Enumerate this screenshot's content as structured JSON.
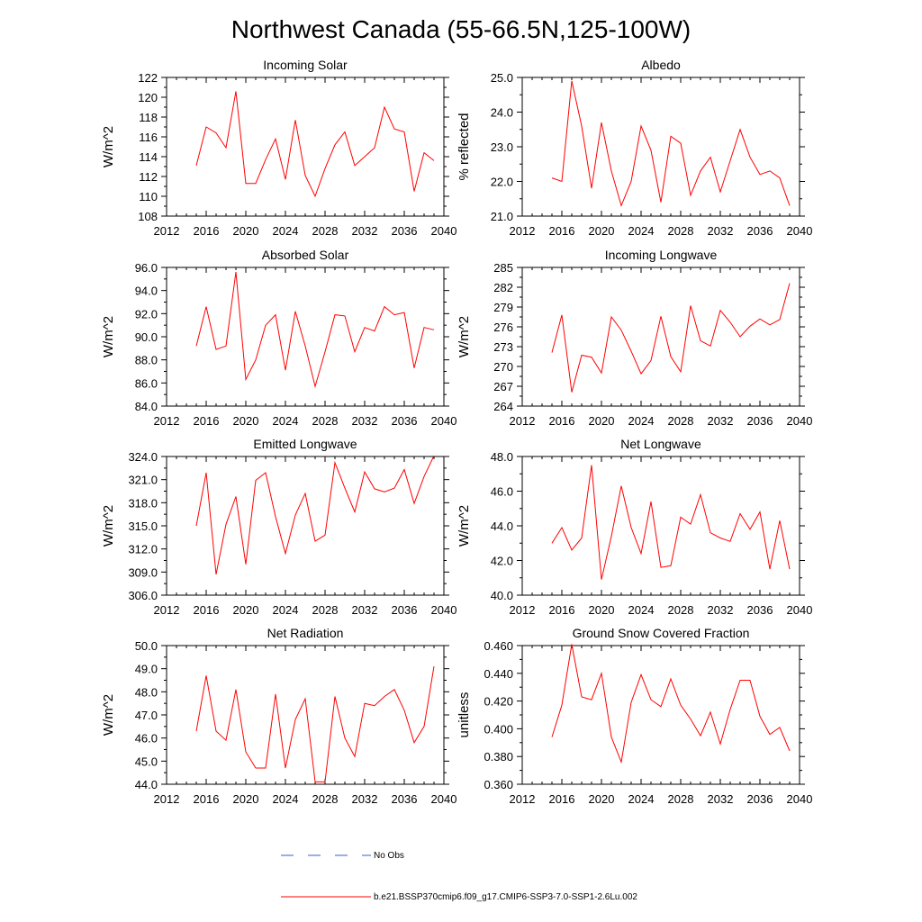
{
  "title": "Northwest Canada (55-66.5N,125-100W)",
  "legend": {
    "obs_label": "No Obs",
    "obs_color": "#3a5bd0",
    "model_label": "b.e21.BSSP370cmip6.f09_g17.CMIP6-SSP3-7.0-SSP1-2.6Lu.002",
    "model_color": "#ff0000"
  },
  "chart_data": [
    {
      "type": "line",
      "title": "Incoming Solar",
      "ylabel": "W/m^2",
      "xlim": [
        2012,
        2040
      ],
      "xticks": [
        "2012",
        "2016",
        "2020",
        "2024",
        "2028",
        "2032",
        "2036",
        "2040"
      ],
      "ylim": [
        108,
        122
      ],
      "yticks": [
        "108",
        "110",
        "112",
        "114",
        "116",
        "118",
        "120",
        "122"
      ],
      "x": [
        2015,
        2016,
        2017,
        2018,
        2019,
        2020,
        2021,
        2022,
        2023,
        2024,
        2025,
        2026,
        2027,
        2028,
        2029,
        2030,
        2031,
        2032,
        2033,
        2034,
        2035,
        2036,
        2037,
        2038,
        2039
      ],
      "series": [
        {
          "values": [
            113.1,
            117.0,
            116.4,
            114.9,
            120.6,
            111.3,
            111.3,
            113.7,
            115.8,
            111.7,
            117.7,
            112.1,
            110.0,
            112.8,
            115.2,
            116.5,
            113.1,
            114.0,
            114.9,
            119.0,
            116.8,
            116.5,
            110.5,
            114.4,
            113.6
          ]
        }
      ]
    },
    {
      "type": "line",
      "title": "Albedo",
      "ylabel": "% reflected",
      "xlim": [
        2012,
        2040
      ],
      "xticks": [
        "2012",
        "2016",
        "2020",
        "2024",
        "2028",
        "2032",
        "2036",
        "2040"
      ],
      "ylim": [
        21.0,
        25.0
      ],
      "yticks": [
        "21.0",
        "22.0",
        "23.0",
        "24.0",
        "25.0"
      ],
      "x": [
        2015,
        2016,
        2017,
        2018,
        2019,
        2020,
        2021,
        2022,
        2023,
        2024,
        2025,
        2026,
        2027,
        2028,
        2029,
        2030,
        2031,
        2032,
        2033,
        2034,
        2035,
        2036,
        2037,
        2038,
        2039
      ],
      "series": [
        {
          "values": [
            22.1,
            22.0,
            24.9,
            23.6,
            21.8,
            23.7,
            22.3,
            21.3,
            22.0,
            23.6,
            22.9,
            21.4,
            23.3,
            23.1,
            21.6,
            22.3,
            22.7,
            21.7,
            22.6,
            23.5,
            22.7,
            22.2,
            22.3,
            22.1,
            21.3
          ]
        }
      ]
    },
    {
      "type": "line",
      "title": "Absorbed Solar",
      "ylabel": "W/m^2",
      "xlim": [
        2012,
        2040
      ],
      "xticks": [
        "2012",
        "2016",
        "2020",
        "2024",
        "2028",
        "2032",
        "2036",
        "2040"
      ],
      "ylim": [
        84.0,
        96.0
      ],
      "yticks": [
        "84.0",
        "86.0",
        "88.0",
        "90.0",
        "92.0",
        "94.0",
        "96.0"
      ],
      "x": [
        2015,
        2016,
        2017,
        2018,
        2019,
        2020,
        2021,
        2022,
        2023,
        2024,
        2025,
        2026,
        2027,
        2028,
        2029,
        2030,
        2031,
        2032,
        2033,
        2034,
        2035,
        2036,
        2037,
        2038,
        2039
      ],
      "series": [
        {
          "values": [
            89.2,
            92.6,
            88.9,
            89.2,
            95.6,
            86.3,
            88.0,
            91.0,
            91.9,
            87.1,
            92.2,
            89.2,
            85.7,
            88.7,
            91.9,
            91.8,
            88.7,
            90.8,
            90.5,
            92.6,
            91.9,
            92.1,
            87.3,
            90.8,
            90.6
          ]
        }
      ]
    },
    {
      "type": "line",
      "title": "Incoming Longwave",
      "ylabel": "W/m^2",
      "xlim": [
        2012,
        2040
      ],
      "xticks": [
        "2012",
        "2016",
        "2020",
        "2024",
        "2028",
        "2032",
        "2036",
        "2040"
      ],
      "ylim": [
        264,
        285
      ],
      "yticks": [
        "264",
        "267",
        "270",
        "273",
        "276",
        "279",
        "282",
        "285"
      ],
      "x": [
        2015,
        2016,
        2017,
        2018,
        2019,
        2020,
        2021,
        2022,
        2023,
        2024,
        2025,
        2026,
        2027,
        2028,
        2029,
        2030,
        2031,
        2032,
        2033,
        2034,
        2035,
        2036,
        2037,
        2038,
        2039
      ],
      "series": [
        {
          "values": [
            272.1,
            277.8,
            266.1,
            271.7,
            271.4,
            269.0,
            277.5,
            275.5,
            272.3,
            268.9,
            270.9,
            277.6,
            271.5,
            269.2,
            279.2,
            273.9,
            273.1,
            278.5,
            276.7,
            274.5,
            276.1,
            277.2,
            276.3,
            277.1,
            282.6
          ]
        }
      ]
    },
    {
      "type": "line",
      "title": "Emitted Longwave",
      "ylabel": "W/m^2",
      "xlim": [
        2012,
        2040
      ],
      "xticks": [
        "2012",
        "2016",
        "2020",
        "2024",
        "2028",
        "2032",
        "2036",
        "2040"
      ],
      "ylim": [
        306.0,
        324.0
      ],
      "yticks": [
        "306.0",
        "309.0",
        "312.0",
        "315.0",
        "318.0",
        "321.0",
        "324.0"
      ],
      "x": [
        2015,
        2016,
        2017,
        2018,
        2019,
        2020,
        2021,
        2022,
        2023,
        2024,
        2025,
        2026,
        2027,
        2028,
        2029,
        2030,
        2031,
        2032,
        2033,
        2034,
        2035,
        2036,
        2037,
        2038,
        2039
      ],
      "series": [
        {
          "values": [
            315.0,
            321.9,
            308.7,
            315.2,
            318.8,
            310.0,
            320.9,
            321.9,
            316.2,
            311.4,
            316.4,
            319.2,
            313.0,
            313.8,
            323.2,
            319.9,
            316.8,
            322.0,
            319.8,
            319.4,
            319.9,
            322.3,
            317.9,
            321.4,
            324.1
          ]
        }
      ]
    },
    {
      "type": "line",
      "title": "Net Longwave",
      "ylabel": "W/m^2",
      "xlim": [
        2012,
        2040
      ],
      "xticks": [
        "2012",
        "2016",
        "2020",
        "2024",
        "2028",
        "2032",
        "2036",
        "2040"
      ],
      "ylim": [
        40.0,
        48.0
      ],
      "yticks": [
        "40.0",
        "42.0",
        "44.0",
        "46.0",
        "48.0"
      ],
      "x": [
        2015,
        2016,
        2017,
        2018,
        2019,
        2020,
        2021,
        2022,
        2023,
        2024,
        2025,
        2026,
        2027,
        2028,
        2029,
        2030,
        2031,
        2032,
        2033,
        2034,
        2035,
        2036,
        2037,
        2038,
        2039
      ],
      "series": [
        {
          "values": [
            43.0,
            43.9,
            42.6,
            43.3,
            47.5,
            40.9,
            43.4,
            46.3,
            43.9,
            42.4,
            45.4,
            41.6,
            41.7,
            44.5,
            44.1,
            45.8,
            43.6,
            43.3,
            43.1,
            44.7,
            43.8,
            44.8,
            41.5,
            44.3,
            41.5
          ]
        }
      ]
    },
    {
      "type": "line",
      "title": "Net Radiation",
      "ylabel": "W/m^2",
      "xlim": [
        2012,
        2040
      ],
      "xticks": [
        "2012",
        "2016",
        "2020",
        "2024",
        "2028",
        "2032",
        "2036",
        "2040"
      ],
      "ylim": [
        44.0,
        50.0
      ],
      "yticks": [
        "44.0",
        "45.0",
        "46.0",
        "47.0",
        "48.0",
        "49.0",
        "50.0"
      ],
      "x": [
        2015,
        2016,
        2017,
        2018,
        2019,
        2020,
        2021,
        2022,
        2023,
        2024,
        2025,
        2026,
        2027,
        2028,
        2029,
        2030,
        2031,
        2032,
        2033,
        2034,
        2035,
        2036,
        2037,
        2038,
        2039
      ],
      "series": [
        {
          "values": [
            46.3,
            48.7,
            46.3,
            45.9,
            48.1,
            45.4,
            44.7,
            44.7,
            47.9,
            44.7,
            46.8,
            47.7,
            44.1,
            44.1,
            47.8,
            46.0,
            45.2,
            47.5,
            47.4,
            47.8,
            48.1,
            47.2,
            45.8,
            46.5,
            49.1
          ]
        }
      ]
    },
    {
      "type": "line",
      "title": "Ground Snow Covered Fraction",
      "ylabel": "unitless",
      "xlim": [
        2012,
        2040
      ],
      "xticks": [
        "2012",
        "2016",
        "2020",
        "2024",
        "2028",
        "2032",
        "2036",
        "2040"
      ],
      "ylim": [
        0.36,
        0.46
      ],
      "yticks": [
        "0.360",
        "0.380",
        "0.400",
        "0.420",
        "0.440",
        "0.460"
      ],
      "x": [
        2015,
        2016,
        2017,
        2018,
        2019,
        2020,
        2021,
        2022,
        2023,
        2024,
        2025,
        2026,
        2027,
        2028,
        2029,
        2030,
        2031,
        2032,
        2033,
        2034,
        2035,
        2036,
        2037,
        2038,
        2039
      ],
      "series": [
        {
          "values": [
            0.394,
            0.417,
            0.461,
            0.423,
            0.421,
            0.44,
            0.394,
            0.376,
            0.419,
            0.439,
            0.421,
            0.416,
            0.436,
            0.417,
            0.407,
            0.395,
            0.412,
            0.389,
            0.414,
            0.435,
            0.435,
            0.409,
            0.396,
            0.401,
            0.384
          ]
        }
      ]
    }
  ]
}
